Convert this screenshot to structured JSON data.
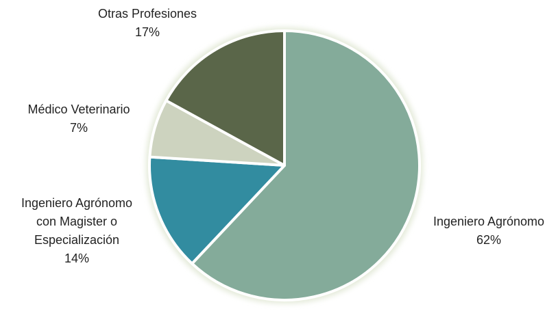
{
  "chart_data": {
    "type": "pie",
    "categories": [
      "Ingeniero Agrónomo",
      "Ingeniero Agrónomo con Magister o Especialización",
      "Médico Veterinario",
      "Otras Profesiones"
    ],
    "values": [
      62,
      14,
      7,
      17
    ],
    "value_labels": [
      "62%",
      "14%",
      "7%",
      "17%"
    ],
    "colors": [
      "#84ab9a",
      "#338ca0",
      "#cdd3bf",
      "#5a6648"
    ]
  }
}
